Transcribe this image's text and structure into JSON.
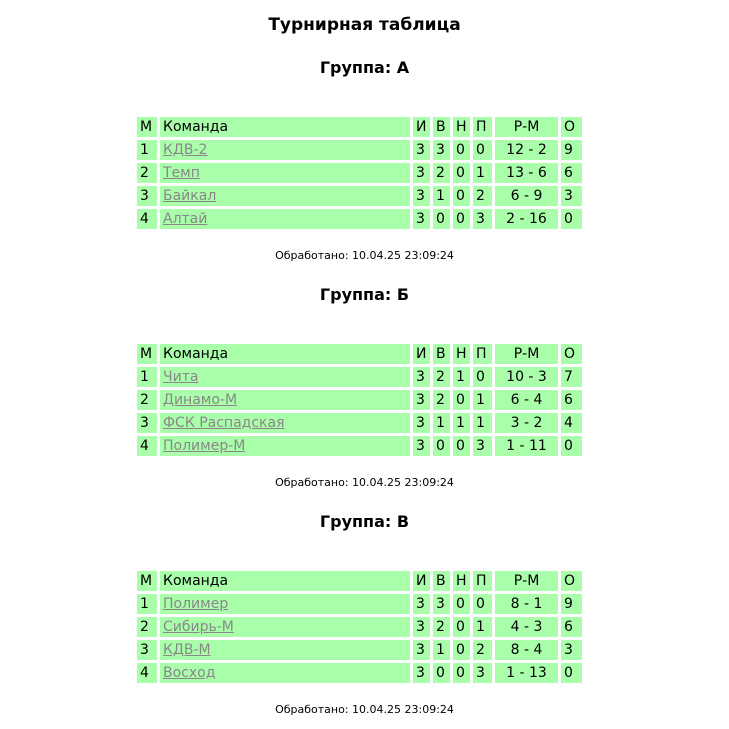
{
  "title": "Турнирная таблица",
  "headers": {
    "pos": "М",
    "team": "Команда",
    "played": "И",
    "won": "В",
    "draw": "Н",
    "lost": "П",
    "goals": "Р-М",
    "points": "О"
  },
  "groups": [
    {
      "title": "Группа: А",
      "rows": [
        {
          "pos": "1",
          "team": "КДВ-2",
          "played": "3",
          "won": "3",
          "draw": "0",
          "lost": "0",
          "goals": "12 - 2",
          "points": "9"
        },
        {
          "pos": "2",
          "team": "Темп",
          "played": "3",
          "won": "2",
          "draw": "0",
          "lost": "1",
          "goals": "13 - 6",
          "points": "6"
        },
        {
          "pos": "3",
          "team": "Байкал",
          "played": "3",
          "won": "1",
          "draw": "0",
          "lost": "2",
          "goals": "6 - 9",
          "points": "3"
        },
        {
          "pos": "4",
          "team": "Алтай",
          "played": "3",
          "won": "0",
          "draw": "0",
          "lost": "3",
          "goals": "2 - 16",
          "points": "0"
        }
      ],
      "processed": "Обработано: 10.04.25 23:09:24"
    },
    {
      "title": "Группа: Б",
      "rows": [
        {
          "pos": "1",
          "team": "Чита",
          "played": "3",
          "won": "2",
          "draw": "1",
          "lost": "0",
          "goals": "10 - 3",
          "points": "7"
        },
        {
          "pos": "2",
          "team": "Динамо-М",
          "played": "3",
          "won": "2",
          "draw": "0",
          "lost": "1",
          "goals": "6 - 4",
          "points": "6"
        },
        {
          "pos": "3",
          "team": "ФСК Распадская",
          "played": "3",
          "won": "1",
          "draw": "1",
          "lost": "1",
          "goals": "3 - 2",
          "points": "4"
        },
        {
          "pos": "4",
          "team": "Полимер-М",
          "played": "3",
          "won": "0",
          "draw": "0",
          "lost": "3",
          "goals": "1 - 11",
          "points": "0"
        }
      ],
      "processed": "Обработано: 10.04.25 23:09:24"
    },
    {
      "title": "Группа: В",
      "rows": [
        {
          "pos": "1",
          "team": "Полимер",
          "played": "3",
          "won": "3",
          "draw": "0",
          "lost": "0",
          "goals": "8 - 1",
          "points": "9"
        },
        {
          "pos": "2",
          "team": "Сибирь-М",
          "played": "3",
          "won": "2",
          "draw": "0",
          "lost": "1",
          "goals": "4 - 3",
          "points": "6"
        },
        {
          "pos": "3",
          "team": "КДВ-М",
          "played": "3",
          "won": "1",
          "draw": "0",
          "lost": "2",
          "goals": "8 - 4",
          "points": "3"
        },
        {
          "pos": "4",
          "team": "Восход",
          "played": "3",
          "won": "0",
          "draw": "0",
          "lost": "3",
          "goals": "1 - 13",
          "points": "0"
        }
      ],
      "processed": "Обработано: 10.04.25 23:09:24"
    }
  ],
  "colors": {
    "cell_bg": "#aaffaa",
    "link": "#888888"
  }
}
